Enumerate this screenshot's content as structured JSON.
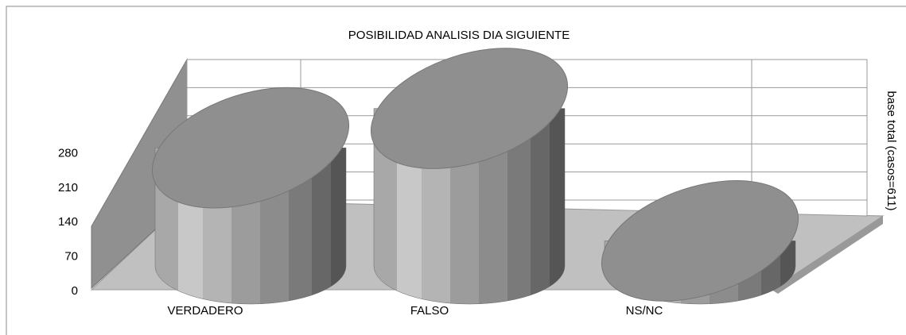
{
  "chart_data": {
    "type": "cylinder3d",
    "title": "POSIBILIDAD ANALISIS DIA SIGUIENTE",
    "y2_label": "base total (casos=611)",
    "categories": [
      "VERDADERO",
      "FALSO",
      "NS/NC"
    ],
    "values": [
      240,
      320,
      51
    ],
    "color": "#999999",
    "ylim": [
      0,
      350
    ],
    "yticks": [
      0,
      70,
      140,
      210,
      280
    ],
    "grid": true
  }
}
